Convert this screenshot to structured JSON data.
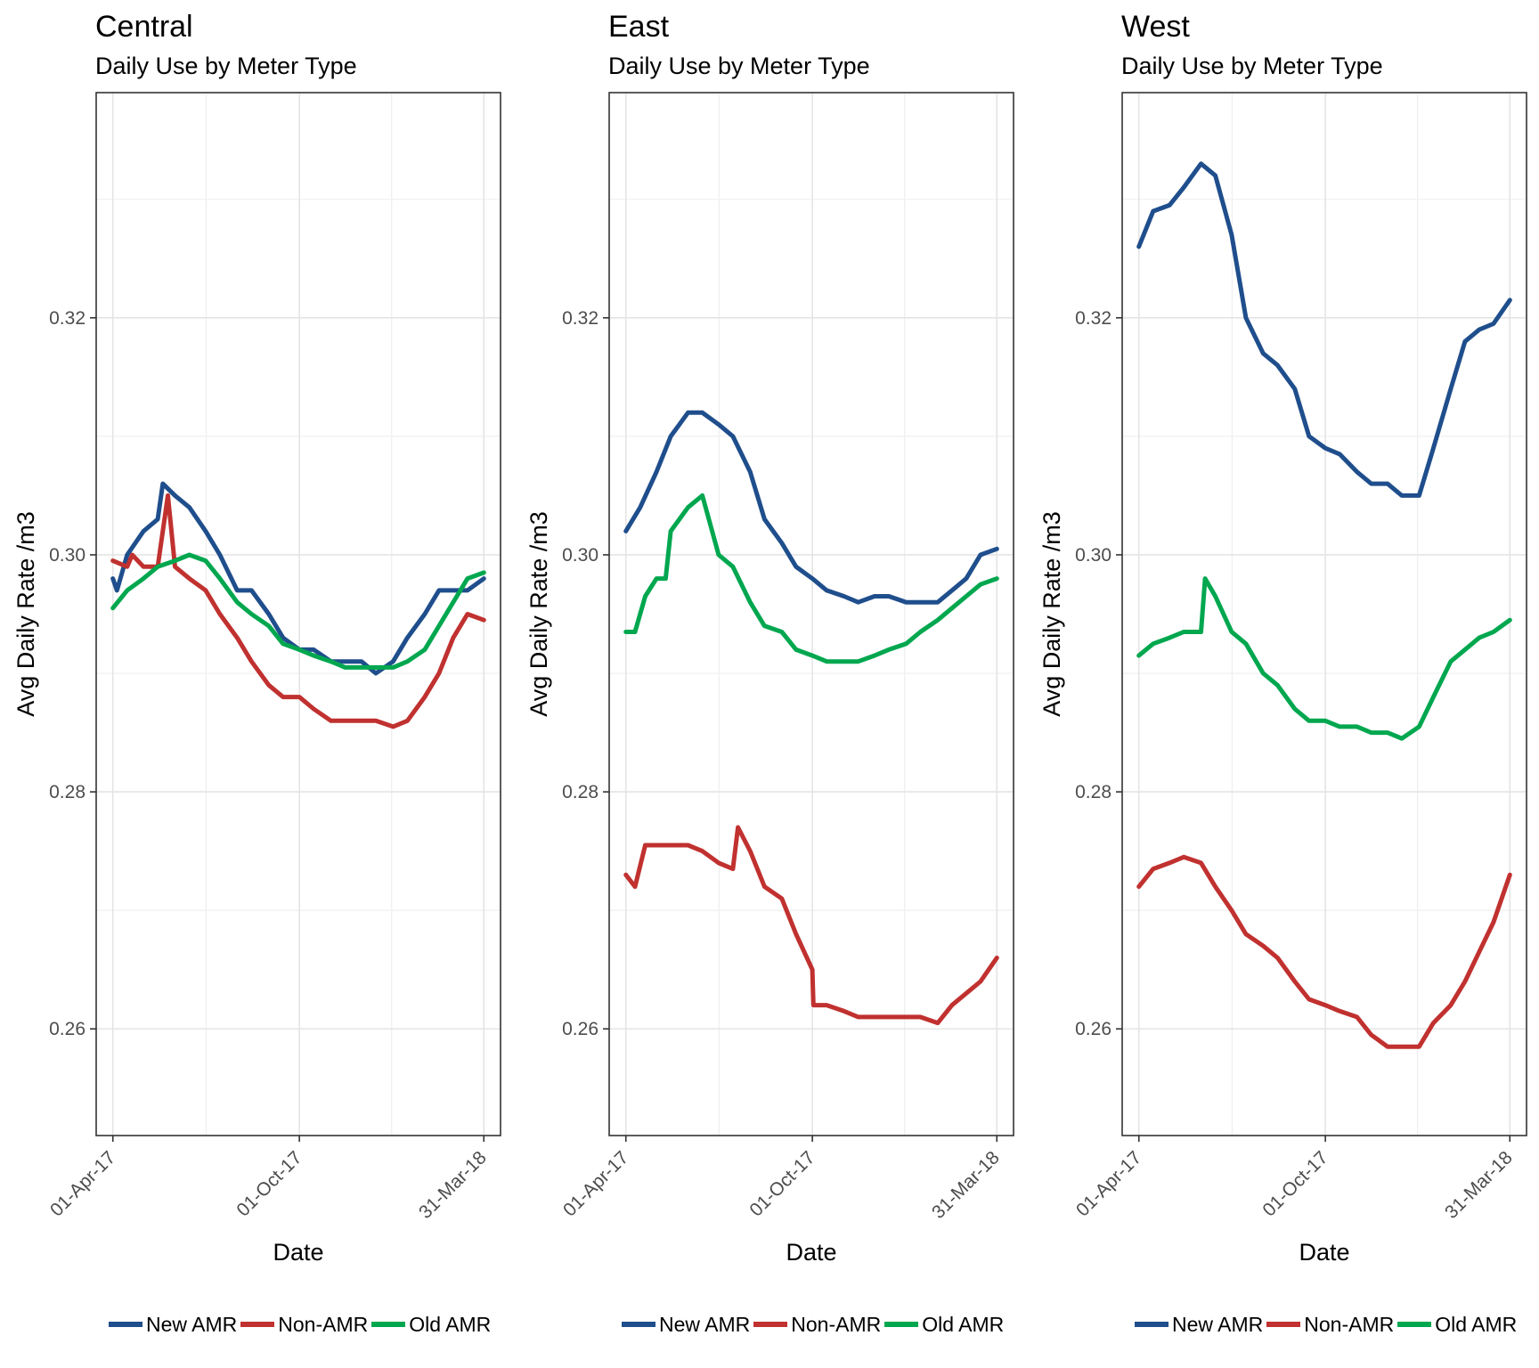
{
  "chart_data": [
    {
      "type": "line",
      "title": "Central",
      "subtitle": "Daily Use by Meter Type",
      "xlabel": "Date",
      "ylabel": "Avg Daily Rate /m3",
      "xticks": [
        "01-Apr-17",
        "01-Oct-17",
        "31-Mar-18"
      ],
      "yticks": [
        0.26,
        0.28,
        0.3,
        0.32
      ],
      "xlim": [
        "2017-04-01",
        "2018-03-31"
      ],
      "ylim": [
        0.251,
        0.339
      ],
      "grid": true,
      "legend_position": "bottom",
      "series": [
        {
          "name": "New AMR",
          "color": "#1F4E8C",
          "x": [
            "2017-04-01",
            "2017-04-05",
            "2017-04-15",
            "2017-05-01",
            "2017-05-15",
            "2017-05-20",
            "2017-06-01",
            "2017-06-15",
            "2017-07-01",
            "2017-07-15",
            "2017-08-01",
            "2017-08-15",
            "2017-09-01",
            "2017-09-15",
            "2017-10-01",
            "2017-10-15",
            "2017-11-01",
            "2017-11-15",
            "2017-12-01",
            "2017-12-15",
            "2018-01-01",
            "2018-01-15",
            "2018-02-01",
            "2018-02-15",
            "2018-03-01",
            "2018-03-15",
            "2018-03-31"
          ],
          "y": [
            0.298,
            0.297,
            0.3,
            0.302,
            0.303,
            0.306,
            0.305,
            0.304,
            0.302,
            0.3,
            0.297,
            0.297,
            0.295,
            0.293,
            0.292,
            0.292,
            0.291,
            0.291,
            0.291,
            0.29,
            0.291,
            0.293,
            0.295,
            0.297,
            0.297,
            0.297,
            0.298
          ]
        },
        {
          "name": "Non-AMR",
          "color": "#C0312F",
          "x": [
            "2017-04-01",
            "2017-04-15",
            "2017-04-20",
            "2017-05-01",
            "2017-05-15",
            "2017-05-25",
            "2017-06-01",
            "2017-06-15",
            "2017-07-01",
            "2017-07-15",
            "2017-08-01",
            "2017-08-15",
            "2017-09-01",
            "2017-09-15",
            "2017-10-01",
            "2017-10-15",
            "2017-11-01",
            "2017-11-15",
            "2017-12-01",
            "2017-12-15",
            "2018-01-01",
            "2018-01-15",
            "2018-02-01",
            "2018-02-15",
            "2018-03-01",
            "2018-03-15",
            "2018-03-31"
          ],
          "y": [
            0.2995,
            0.299,
            0.3,
            0.299,
            0.299,
            0.305,
            0.299,
            0.298,
            0.297,
            0.295,
            0.293,
            0.291,
            0.289,
            0.288,
            0.288,
            0.287,
            0.286,
            0.286,
            0.286,
            0.286,
            0.2855,
            0.286,
            0.288,
            0.29,
            0.293,
            0.295,
            0.2945
          ]
        },
        {
          "name": "Old AMR",
          "color": "#00A74F",
          "x": [
            "2017-04-01",
            "2017-04-15",
            "2017-05-01",
            "2017-05-15",
            "2017-06-01",
            "2017-06-15",
            "2017-07-01",
            "2017-07-15",
            "2017-08-01",
            "2017-08-15",
            "2017-09-01",
            "2017-09-15",
            "2017-10-01",
            "2017-10-15",
            "2017-11-01",
            "2017-11-15",
            "2017-12-01",
            "2017-12-15",
            "2018-01-01",
            "2018-01-15",
            "2018-02-01",
            "2018-02-15",
            "2018-03-01",
            "2018-03-15",
            "2018-03-31"
          ],
          "y": [
            0.2955,
            0.297,
            0.298,
            0.299,
            0.2995,
            0.3,
            0.2995,
            0.298,
            0.296,
            0.295,
            0.294,
            0.2925,
            0.292,
            0.2915,
            0.291,
            0.2905,
            0.2905,
            0.2905,
            0.2905,
            0.291,
            0.292,
            0.294,
            0.296,
            0.298,
            0.2985
          ]
        }
      ]
    },
    {
      "type": "line",
      "title": "East",
      "subtitle": "Daily Use by Meter Type",
      "xlabel": "Date",
      "ylabel": "Avg Daily Rate /m3",
      "xticks": [
        "01-Apr-17",
        "01-Oct-17",
        "31-Mar-18"
      ],
      "yticks": [
        0.26,
        0.28,
        0.3,
        0.32
      ],
      "xlim": [
        "2017-04-01",
        "2018-03-31"
      ],
      "ylim": [
        0.251,
        0.339
      ],
      "grid": true,
      "legend_position": "bottom",
      "series": [
        {
          "name": "New AMR",
          "color": "#1F4E8C",
          "x": [
            "2017-04-01",
            "2017-04-15",
            "2017-05-01",
            "2017-05-15",
            "2017-06-01",
            "2017-06-15",
            "2017-07-01",
            "2017-07-15",
            "2017-08-01",
            "2017-08-15",
            "2017-09-01",
            "2017-09-15",
            "2017-10-01",
            "2017-10-15",
            "2017-11-01",
            "2017-11-15",
            "2017-12-01",
            "2017-12-15",
            "2018-01-01",
            "2018-01-15",
            "2018-02-01",
            "2018-02-15",
            "2018-03-01",
            "2018-03-15",
            "2018-03-31"
          ],
          "y": [
            0.302,
            0.304,
            0.307,
            0.31,
            0.312,
            0.312,
            0.311,
            0.31,
            0.307,
            0.303,
            0.301,
            0.299,
            0.298,
            0.297,
            0.2965,
            0.296,
            0.2965,
            0.2965,
            0.296,
            0.296,
            0.296,
            0.297,
            0.298,
            0.3,
            0.3005
          ]
        },
        {
          "name": "Non-AMR",
          "color": "#C0312F",
          "x": [
            "2017-04-01",
            "2017-04-10",
            "2017-04-20",
            "2017-05-01",
            "2017-05-15",
            "2017-06-01",
            "2017-06-15",
            "2017-07-01",
            "2017-07-15",
            "2017-07-20",
            "2017-08-01",
            "2017-08-15",
            "2017-09-01",
            "2017-09-15",
            "2017-10-01",
            "2017-10-02",
            "2017-10-15",
            "2017-11-01",
            "2017-11-15",
            "2017-12-01",
            "2017-12-15",
            "2018-01-01",
            "2018-01-15",
            "2018-02-01",
            "2018-02-15",
            "2018-03-01",
            "2018-03-15",
            "2018-03-31"
          ],
          "y": [
            0.273,
            0.272,
            0.2755,
            0.2755,
            0.2755,
            0.2755,
            0.275,
            0.274,
            0.2735,
            0.277,
            0.275,
            0.272,
            0.271,
            0.268,
            0.265,
            0.262,
            0.262,
            0.2615,
            0.261,
            0.261,
            0.261,
            0.261,
            0.261,
            0.2605,
            0.262,
            0.263,
            0.264,
            0.266
          ]
        },
        {
          "name": "Old AMR",
          "color": "#00A74F",
          "x": [
            "2017-04-01",
            "2017-04-10",
            "2017-04-20",
            "2017-05-01",
            "2017-05-10",
            "2017-05-15",
            "2017-06-01",
            "2017-06-15",
            "2017-07-01",
            "2017-07-15",
            "2017-08-01",
            "2017-08-15",
            "2017-09-01",
            "2017-09-15",
            "2017-10-01",
            "2017-10-15",
            "2017-11-01",
            "2017-11-15",
            "2017-12-01",
            "2017-12-15",
            "2018-01-01",
            "2018-01-15",
            "2018-02-01",
            "2018-02-15",
            "2018-03-01",
            "2018-03-15",
            "2018-03-31"
          ],
          "y": [
            0.2935,
            0.2935,
            0.2965,
            0.298,
            0.298,
            0.302,
            0.304,
            0.305,
            0.3,
            0.299,
            0.296,
            0.294,
            0.2935,
            0.292,
            0.2915,
            0.291,
            0.291,
            0.291,
            0.2915,
            0.292,
            0.2925,
            0.2935,
            0.2945,
            0.2955,
            0.2965,
            0.2975,
            0.298
          ]
        }
      ]
    },
    {
      "type": "line",
      "title": "West",
      "subtitle": "Daily Use by Meter Type",
      "xlabel": "Date",
      "ylabel": "Avg Daily Rate /m3",
      "xticks": [
        "01-Apr-17",
        "01-Oct-17",
        "31-Mar-18"
      ],
      "yticks": [
        0.26,
        0.28,
        0.3,
        0.32
      ],
      "xlim": [
        "2017-04-01",
        "2018-03-31"
      ],
      "ylim": [
        0.251,
        0.339
      ],
      "grid": true,
      "legend_position": "bottom",
      "series": [
        {
          "name": "New AMR",
          "color": "#1F4E8C",
          "x": [
            "2017-04-01",
            "2017-04-15",
            "2017-05-01",
            "2017-05-15",
            "2017-06-01",
            "2017-06-15",
            "2017-07-01",
            "2017-07-15",
            "2017-08-01",
            "2017-08-15",
            "2017-09-01",
            "2017-09-15",
            "2017-10-01",
            "2017-10-15",
            "2017-11-01",
            "2017-11-15",
            "2017-12-01",
            "2017-12-15",
            "2018-01-01",
            "2018-01-15",
            "2018-02-01",
            "2018-02-15",
            "2018-03-01",
            "2018-03-15",
            "2018-03-31"
          ],
          "y": [
            0.326,
            0.329,
            0.3295,
            0.331,
            0.333,
            0.332,
            0.327,
            0.32,
            0.317,
            0.316,
            0.314,
            0.31,
            0.309,
            0.3085,
            0.307,
            0.306,
            0.306,
            0.305,
            0.305,
            0.309,
            0.314,
            0.318,
            0.319,
            0.3195,
            0.3215
          ]
        },
        {
          "name": "Non-AMR",
          "color": "#C0312F",
          "x": [
            "2017-04-01",
            "2017-04-15",
            "2017-05-01",
            "2017-05-15",
            "2017-06-01",
            "2017-06-15",
            "2017-07-01",
            "2017-07-15",
            "2017-08-01",
            "2017-08-15",
            "2017-09-01",
            "2017-09-15",
            "2017-10-01",
            "2017-10-15",
            "2017-11-01",
            "2017-11-15",
            "2017-12-01",
            "2017-12-15",
            "2018-01-01",
            "2018-01-15",
            "2018-02-01",
            "2018-02-15",
            "2018-03-01",
            "2018-03-15",
            "2018-03-31"
          ],
          "y": [
            0.272,
            0.2735,
            0.274,
            0.2745,
            0.274,
            0.272,
            0.27,
            0.268,
            0.267,
            0.266,
            0.264,
            0.2625,
            0.262,
            0.2615,
            0.261,
            0.2595,
            0.2585,
            0.2585,
            0.2585,
            0.2605,
            0.262,
            0.264,
            0.2665,
            0.269,
            0.273
          ]
        },
        {
          "name": "Old AMR",
          "color": "#00A74F",
          "x": [
            "2017-04-01",
            "2017-04-15",
            "2017-05-01",
            "2017-05-15",
            "2017-06-01",
            "2017-06-05",
            "2017-06-15",
            "2017-07-01",
            "2017-07-15",
            "2017-08-01",
            "2017-08-15",
            "2017-09-01",
            "2017-09-15",
            "2017-10-01",
            "2017-10-15",
            "2017-11-01",
            "2017-11-15",
            "2017-12-01",
            "2017-12-15",
            "2018-01-01",
            "2018-01-15",
            "2018-02-01",
            "2018-02-15",
            "2018-03-01",
            "2018-03-15",
            "2018-03-31"
          ],
          "y": [
            0.2915,
            0.2925,
            0.293,
            0.2935,
            0.2935,
            0.298,
            0.2965,
            0.2935,
            0.2925,
            0.29,
            0.289,
            0.287,
            0.286,
            0.286,
            0.2855,
            0.2855,
            0.285,
            0.285,
            0.2845,
            0.2855,
            0.288,
            0.291,
            0.292,
            0.293,
            0.2935,
            0.2945
          ]
        }
      ]
    }
  ]
}
